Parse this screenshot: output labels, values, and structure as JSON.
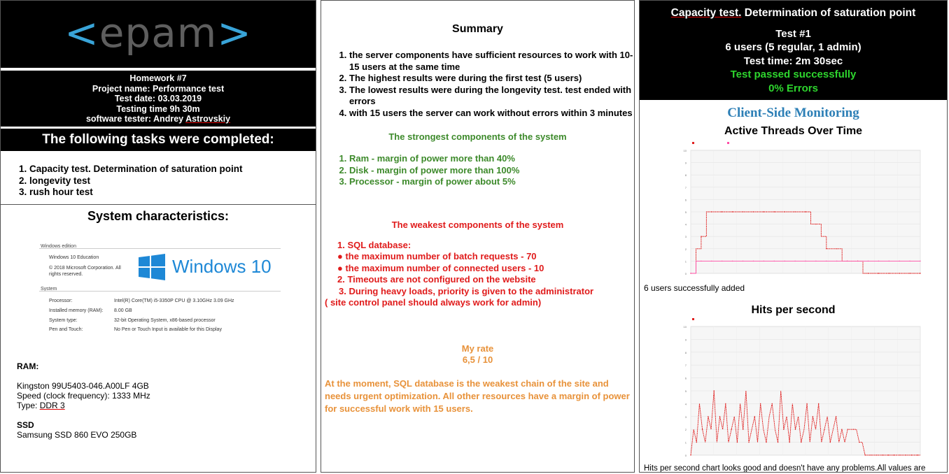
{
  "panel1": {
    "logo": {
      "bracket_left": "<",
      "word": "epam",
      "bracket_right": ">"
    },
    "homework": {
      "line1": "Homework #7",
      "line2": "Project name: Performance test",
      "line3": "Test date: 03.03.2019",
      "line4": "Testing time 9h 30m",
      "line5_prefix": "software tester: Andrey ",
      "line5_name": "Astrovskiy"
    },
    "tasks_title": "The following tasks were completed:",
    "tasks": [
      "Capacity test. Determination of saturation point",
      "longevity test",
      "rush hour test"
    ],
    "system_title": "System characteristics:",
    "windows": {
      "edition_header": "Windows edition",
      "edition": "Windows 10 Education",
      "copyright": "© 2018 Microsoft Corporation. All rights reserved.",
      "logo_text": "Windows 10",
      "system_header": "System",
      "rows": [
        {
          "label": "Processor:",
          "value": "Intel(R) Core(TM) i5-3350P CPU @ 3.10GHz   3.09 GHz"
        },
        {
          "label": "Installed memory (RAM):",
          "value": "8.00 GB"
        },
        {
          "label": "System type:",
          "value": "32-bit Operating System, x86-based processor"
        },
        {
          "label": "Pen and Touch:",
          "value": "No Pen or Touch Input is available for this Display"
        }
      ]
    },
    "ram": {
      "label": "RAM:",
      "line1": "Kingston  99U5403-046.A00LF  4GB",
      "line2": "Speed (clock frequency): 1333 MHz",
      "line3_prefix": "Type: ",
      "line3_value": "DDR 3"
    },
    "ssd": {
      "label": "SSD",
      "value": "Samsung SSD 860 EVO 250GB"
    }
  },
  "panel2": {
    "title": "Summary",
    "findings": [
      "the server components have sufficient resources to work with 10-15 users at the same time",
      "The highest results were during the first test (5 users)",
      "The lowest results were during the longevity test. test ended with errors",
      "with 15 users the server can work without errors within 3 minutes"
    ],
    "strongest_title": "The strongest components of the system",
    "strongest": [
      "Ram -  margin of power more than 40%",
      "Disk - margin of power more than 100%",
      "Processor - margin of power about 5%"
    ],
    "weakest_title": "The weakest components of the system",
    "weakest": [
      "1.  SQL database:",
      "●   the maximum number of batch requests - 70",
      "●   the maximum number of connected users - 10",
      "2. Timeouts are not configured on the website",
      "3. During heavy loads, priority is given to the administrator",
      "( site control panel should always work for admin)"
    ],
    "rate_label": "My rate",
    "rate_value": "6,5 / 10",
    "conclusion": "At the moment, SQL database is the weakest chain of the site and needs urgent optimization. All other resources have a margin of power for successful work with 15 users."
  },
  "panel3": {
    "title_underlined": "Capacity test.",
    "title_rest": " Determination of saturation point",
    "test_no": "Test #1",
    "users": "6 users (5 regular, 1 admin)",
    "time": "Test time: 2m 30sec",
    "passed": "Test passed successfully",
    "errors": "0% Errors",
    "monitoring_title": "Client-Side Monitoring",
    "chart1_title": "Active Threads Over Time",
    "chart1_caption": "6 users successfully added",
    "chart2_title": "Hits per second",
    "chart2_caption": "Hits per second chart looks good and doesn't have any problems.All values are"
  },
  "colors": {
    "epam_blue": "#39a4d8",
    "green": "#3d8a2b",
    "red": "#e01b1b",
    "orange": "#e8923a",
    "pass_green": "#2ed52e",
    "monitoring_blue": "#2d7fb6",
    "windows_blue": "#1e88d6"
  },
  "chart_data": [
    {
      "type": "line",
      "title": "Active Threads Over Time",
      "ylim": [
        0,
        10
      ],
      "series": [
        {
          "values": [
            0,
            2,
            3,
            5,
            5,
            5,
            5,
            5,
            5,
            5,
            5,
            5,
            5,
            5,
            5,
            5,
            5,
            5,
            5,
            5,
            5,
            5,
            5,
            4,
            4,
            3,
            2,
            2,
            2,
            1,
            1,
            1,
            1,
            0,
            0,
            0,
            0,
            0,
            0,
            0,
            0,
            0,
            0,
            0,
            0
          ]
        },
        {
          "values": [
            0,
            1,
            1,
            1,
            1,
            1,
            1,
            1,
            1,
            1,
            1,
            1,
            1,
            1,
            1,
            1,
            1,
            1,
            1,
            1,
            1,
            1,
            1,
            1,
            1,
            1,
            1,
            1,
            1,
            1,
            1,
            1,
            1,
            1,
            1,
            1,
            1,
            1,
            1,
            1,
            1,
            1,
            1,
            1,
            1
          ]
        }
      ]
    },
    {
      "type": "line",
      "title": "Hits per second",
      "ylim": [
        0,
        10
      ],
      "series": [
        {
          "values": [
            0,
            2,
            1,
            4,
            2,
            1,
            3,
            2,
            5,
            1,
            3,
            2,
            4,
            1,
            2,
            3,
            1,
            4,
            2,
            5,
            1,
            2,
            3,
            1,
            4,
            2,
            1,
            3,
            4,
            2,
            1,
            5,
            2,
            3,
            1,
            4,
            2,
            3,
            1,
            2,
            4,
            1,
            3,
            2,
            4,
            1,
            2,
            3,
            1,
            2,
            3,
            1,
            2,
            1,
            2,
            2,
            2,
            2,
            1,
            1,
            0,
            0,
            0,
            0,
            0,
            0,
            0,
            0,
            0,
            0,
            0,
            0,
            0,
            0,
            0,
            0,
            0,
            0,
            0,
            0
          ]
        }
      ]
    }
  ]
}
